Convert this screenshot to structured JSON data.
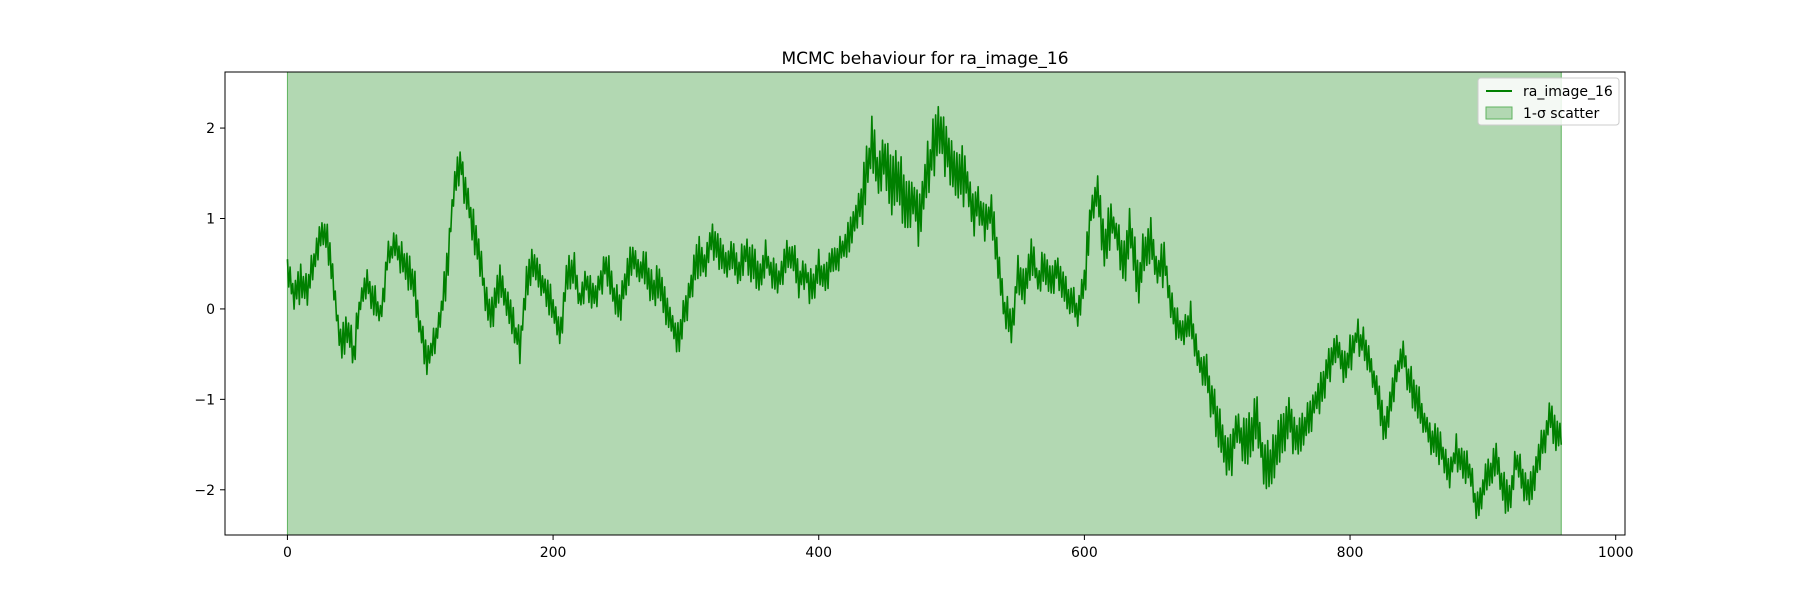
{
  "chart_data": {
    "type": "line",
    "title": "MCMC behaviour for ra_image_16",
    "xlabel": "",
    "ylabel": "",
    "xlim": [
      -47,
      1007
    ],
    "ylim": [
      -2.5,
      2.62
    ],
    "xticks": [
      0,
      200,
      400,
      600,
      800,
      1000
    ],
    "yticks": [
      -2,
      -1,
      0,
      1,
      2
    ],
    "xtick_labels": [
      "0",
      "200",
      "400",
      "600",
      "800",
      "1000"
    ],
    "ytick_labels": [
      "−2",
      "−1",
      "0",
      "1",
      "2"
    ],
    "grid": false,
    "legend_position": "top-right",
    "scatter_band": {
      "x_start": 0,
      "x_end": 959,
      "y_low": -2.5,
      "y_high": 2.62
    },
    "anchors": [
      [
        0,
        0.55
      ],
      [
        5,
        0.1
      ],
      [
        10,
        0.3
      ],
      [
        15,
        0.2
      ],
      [
        20,
        0.5
      ],
      [
        25,
        0.9
      ],
      [
        30,
        0.75
      ],
      [
        35,
        0.2
      ],
      [
        40,
        -0.4
      ],
      [
        45,
        -0.25
      ],
      [
        50,
        -0.5
      ],
      [
        55,
        0.1
      ],
      [
        60,
        0.3
      ],
      [
        65,
        0.1
      ],
      [
        70,
        -0.1
      ],
      [
        75,
        0.5
      ],
      [
        80,
        0.7
      ],
      [
        85,
        0.55
      ],
      [
        90,
        0.45
      ],
      [
        95,
        0.3
      ],
      [
        100,
        -0.2
      ],
      [
        105,
        -0.6
      ],
      [
        110,
        -0.4
      ],
      [
        115,
        -0.1
      ],
      [
        120,
        0.4
      ],
      [
        125,
        1.3
      ],
      [
        130,
        1.65
      ],
      [
        135,
        1.2
      ],
      [
        140,
        0.9
      ],
      [
        145,
        0.5
      ],
      [
        150,
        0.1
      ],
      [
        155,
        -0.05
      ],
      [
        160,
        0.3
      ],
      [
        165,
        0.1
      ],
      [
        170,
        -0.2
      ],
      [
        175,
        -0.4
      ],
      [
        180,
        0.3
      ],
      [
        185,
        0.55
      ],
      [
        190,
        0.4
      ],
      [
        195,
        0.15
      ],
      [
        200,
        0.0
      ],
      [
        205,
        -0.3
      ],
      [
        210,
        0.3
      ],
      [
        215,
        0.5
      ],
      [
        220,
        0.1
      ],
      [
        225,
        0.3
      ],
      [
        230,
        0.1
      ],
      [
        235,
        0.3
      ],
      [
        240,
        0.5
      ],
      [
        245,
        0.2
      ],
      [
        250,
        0.0
      ],
      [
        255,
        0.3
      ],
      [
        260,
        0.6
      ],
      [
        265,
        0.4
      ],
      [
        270,
        0.45
      ],
      [
        275,
        0.2
      ],
      [
        280,
        0.3
      ],
      [
        285,
        0.0
      ],
      [
        290,
        -0.2
      ],
      [
        295,
        -0.3
      ],
      [
        300,
        0.0
      ],
      [
        305,
        0.35
      ],
      [
        310,
        0.6
      ],
      [
        315,
        0.5
      ],
      [
        320,
        0.8
      ],
      [
        325,
        0.6
      ],
      [
        330,
        0.5
      ],
      [
        335,
        0.55
      ],
      [
        340,
        0.45
      ],
      [
        345,
        0.6
      ],
      [
        350,
        0.5
      ],
      [
        355,
        0.35
      ],
      [
        360,
        0.55
      ],
      [
        365,
        0.4
      ],
      [
        370,
        0.3
      ],
      [
        375,
        0.55
      ],
      [
        380,
        0.6
      ],
      [
        385,
        0.3
      ],
      [
        390,
        0.4
      ],
      [
        395,
        0.2
      ],
      [
        400,
        0.45
      ],
      [
        405,
        0.3
      ],
      [
        410,
        0.55
      ],
      [
        415,
        0.6
      ],
      [
        420,
        0.7
      ],
      [
        425,
        0.85
      ],
      [
        430,
        1.1
      ],
      [
        435,
        1.4
      ],
      [
        440,
        1.8
      ],
      [
        445,
        1.5
      ],
      [
        450,
        1.65
      ],
      [
        455,
        1.3
      ],
      [
        460,
        1.5
      ],
      [
        465,
        1.1
      ],
      [
        470,
        1.2
      ],
      [
        475,
        1.0
      ],
      [
        480,
        1.4
      ],
      [
        485,
        1.7
      ],
      [
        490,
        2.0
      ],
      [
        495,
        1.8
      ],
      [
        500,
        1.6
      ],
      [
        505,
        1.4
      ],
      [
        510,
        1.5
      ],
      [
        515,
        1.1
      ],
      [
        520,
        1.2
      ],
      [
        525,
        0.9
      ],
      [
        530,
        1.1
      ],
      [
        535,
        0.5
      ],
      [
        540,
        0.0
      ],
      [
        545,
        -0.2
      ],
      [
        550,
        0.4
      ],
      [
        555,
        0.2
      ],
      [
        560,
        0.6
      ],
      [
        565,
        0.3
      ],
      [
        570,
        0.5
      ],
      [
        575,
        0.35
      ],
      [
        580,
        0.45
      ],
      [
        585,
        0.2
      ],
      [
        590,
        0.1
      ],
      [
        595,
        -0.1
      ],
      [
        600,
        0.3
      ],
      [
        605,
        1.1
      ],
      [
        610,
        1.3
      ],
      [
        615,
        0.6
      ],
      [
        620,
        1.0
      ],
      [
        625,
        0.8
      ],
      [
        630,
        0.5
      ],
      [
        635,
        0.9
      ],
      [
        640,
        0.3
      ],
      [
        645,
        0.6
      ],
      [
        650,
        0.8
      ],
      [
        655,
        0.4
      ],
      [
        660,
        0.55
      ],
      [
        665,
        0.0
      ],
      [
        670,
        -0.2
      ],
      [
        675,
        -0.3
      ],
      [
        680,
        -0.1
      ],
      [
        685,
        -0.5
      ],
      [
        690,
        -0.7
      ],
      [
        695,
        -0.9
      ],
      [
        700,
        -1.3
      ],
      [
        705,
        -1.5
      ],
      [
        710,
        -1.6
      ],
      [
        715,
        -1.3
      ],
      [
        720,
        -1.5
      ],
      [
        725,
        -1.45
      ],
      [
        730,
        -1.2
      ],
      [
        735,
        -1.7
      ],
      [
        740,
        -1.8
      ],
      [
        745,
        -1.5
      ],
      [
        750,
        -1.3
      ],
      [
        755,
        -1.2
      ],
      [
        760,
        -1.5
      ],
      [
        765,
        -1.3
      ],
      [
        770,
        -1.2
      ],
      [
        775,
        -1.0
      ],
      [
        780,
        -0.85
      ],
      [
        785,
        -0.6
      ],
      [
        790,
        -0.4
      ],
      [
        795,
        -0.7
      ],
      [
        800,
        -0.5
      ],
      [
        805,
        -0.3
      ],
      [
        810,
        -0.4
      ],
      [
        815,
        -0.6
      ],
      [
        820,
        -0.9
      ],
      [
        825,
        -1.3
      ],
      [
        830,
        -1.1
      ],
      [
        835,
        -0.7
      ],
      [
        840,
        -0.5
      ],
      [
        845,
        -0.8
      ],
      [
        850,
        -1.0
      ],
      [
        855,
        -1.2
      ],
      [
        860,
        -1.4
      ],
      [
        865,
        -1.5
      ],
      [
        870,
        -1.6
      ],
      [
        875,
        -1.8
      ],
      [
        880,
        -1.6
      ],
      [
        885,
        -1.7
      ],
      [
        890,
        -1.8
      ],
      [
        895,
        -2.2
      ],
      [
        900,
        -2.0
      ],
      [
        905,
        -1.8
      ],
      [
        910,
        -1.7
      ],
      [
        915,
        -2.0
      ],
      [
        920,
        -2.1
      ],
      [
        925,
        -1.7
      ],
      [
        930,
        -1.9
      ],
      [
        935,
        -2.0
      ],
      [
        940,
        -1.8
      ],
      [
        945,
        -1.5
      ],
      [
        950,
        -1.2
      ],
      [
        955,
        -1.4
      ],
      [
        959,
        -1.35
      ]
    ],
    "series": [
      {
        "name": "ra_image_16",
        "color": "#008000"
      }
    ],
    "band_legend_label": "1-σ scatter",
    "band_color": "#b2d8b2",
    "band_edge_color": "#5fb45f"
  }
}
